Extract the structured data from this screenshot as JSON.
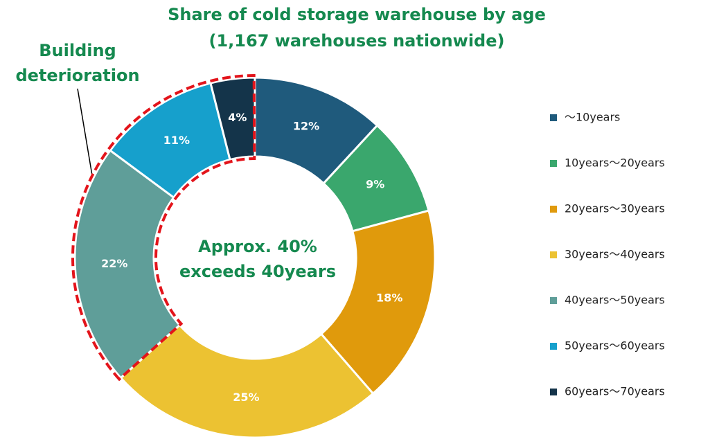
{
  "chart_data": {
    "type": "donut",
    "title": "Share of cold storage warehouse by age",
    "subtitle": "(1,167 warehouses nationwide)",
    "annotation": [
      "Building",
      "deterioration"
    ],
    "center_text": [
      "Approx. 40%",
      "exceeds 40years"
    ],
    "categories": [
      "～10years",
      "10years～20years",
      "20years～30years",
      "30years～40years",
      "40years～50years",
      "50years～60years",
      "60years～70years"
    ],
    "values": [
      12,
      9,
      18,
      25,
      22,
      11,
      4
    ],
    "value_labels": [
      "12%",
      "9%",
      "18%",
      "25%",
      "22%",
      "11%",
      "4%"
    ],
    "colors": [
      "#1f5a7c",
      "#3aa76d",
      "#e09a0c",
      "#ecc232",
      "#5f9e99",
      "#16a0cc",
      "#14344a"
    ],
    "legend": "right"
  }
}
